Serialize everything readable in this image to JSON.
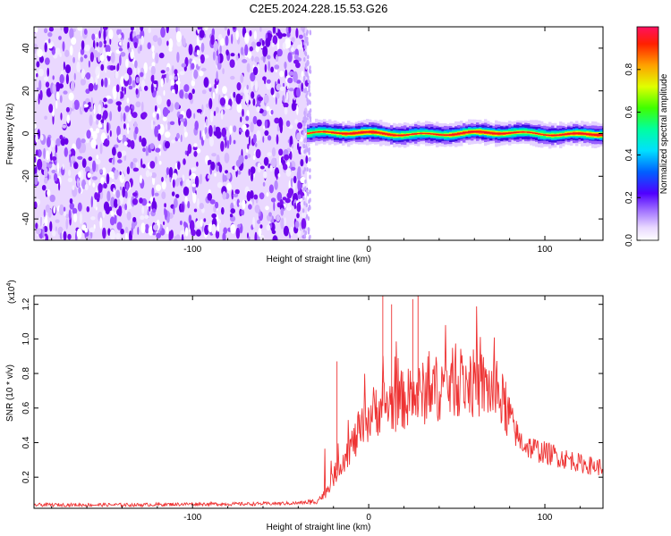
{
  "title": "C2E5.2024.228.15.53.G26",
  "chart_data": [
    {
      "type": "heatmap",
      "panel": "spectrogram",
      "xlabel": "Height of straight line (km)",
      "ylabel": "Frequency (Hz)",
      "xlim": [
        -190,
        133
      ],
      "ylim": [
        -50,
        50
      ],
      "xticks": [
        -100,
        0,
        100
      ],
      "yticks": [
        -40,
        -20,
        0,
        20,
        40
      ],
      "colorbar": {
        "label": "Normalized spectral amplitude",
        "range": [
          0,
          1
        ],
        "ticks": [
          0.0,
          0.2,
          0.4,
          0.6,
          0.8
        ]
      },
      "regions": [
        {
          "description": "broadband noise",
          "x_range": [
            -190,
            -35
          ],
          "y_range": [
            -50,
            50
          ],
          "amplitude": 0.15
        },
        {
          "description": "narrow signal band near 0 Hz",
          "x_range": [
            -35,
            133
          ],
          "center_freq": 0,
          "half_width_hz": 3,
          "peak_amplitude": 1.0
        }
      ]
    },
    {
      "type": "line",
      "panel": "snr",
      "xlabel": "Height of straight line (km)",
      "ylabel": "SNR (10 * v/v)",
      "y_scale_label": "(x10",
      "y_scale_exp": "4",
      "xlim": [
        -190,
        133
      ],
      "ylim": [
        0.02,
        1.25
      ],
      "xticks": [
        -100,
        0,
        100
      ],
      "yticks": [
        0.2,
        0.4,
        0.6,
        0.8,
        1.0,
        1.2
      ],
      "color": "#ee3333",
      "series": [
        {
          "x": [
            -190,
            -160,
            -130,
            -100,
            -70,
            -40,
            -30,
            -25,
            -20,
            -15,
            -10,
            -5,
            0,
            5,
            10,
            15,
            20,
            25,
            30,
            35,
            40,
            45,
            50,
            55,
            60,
            65,
            70,
            75,
            80,
            85,
            90,
            95,
            100,
            105,
            110,
            115,
            120,
            125,
            130,
            133
          ],
          "values": [
            0.04,
            0.04,
            0.04,
            0.045,
            0.045,
            0.05,
            0.06,
            0.1,
            0.2,
            0.3,
            0.38,
            0.45,
            0.55,
            0.6,
            0.62,
            0.63,
            0.65,
            0.66,
            0.68,
            0.7,
            0.72,
            0.74,
            0.75,
            0.75,
            0.74,
            0.73,
            0.7,
            0.65,
            0.55,
            0.42,
            0.38,
            0.36,
            0.34,
            0.33,
            0.31,
            0.3,
            0.28,
            0.27,
            0.26,
            0.26
          ]
        }
      ],
      "spikes": [
        {
          "x": -18,
          "y": 0.87
        },
        {
          "x": 8,
          "y": 1.25
        },
        {
          "x": 13,
          "y": 1.2
        },
        {
          "x": 25,
          "y": 1.23
        },
        {
          "x": 28,
          "y": 1.27
        }
      ]
    }
  ]
}
